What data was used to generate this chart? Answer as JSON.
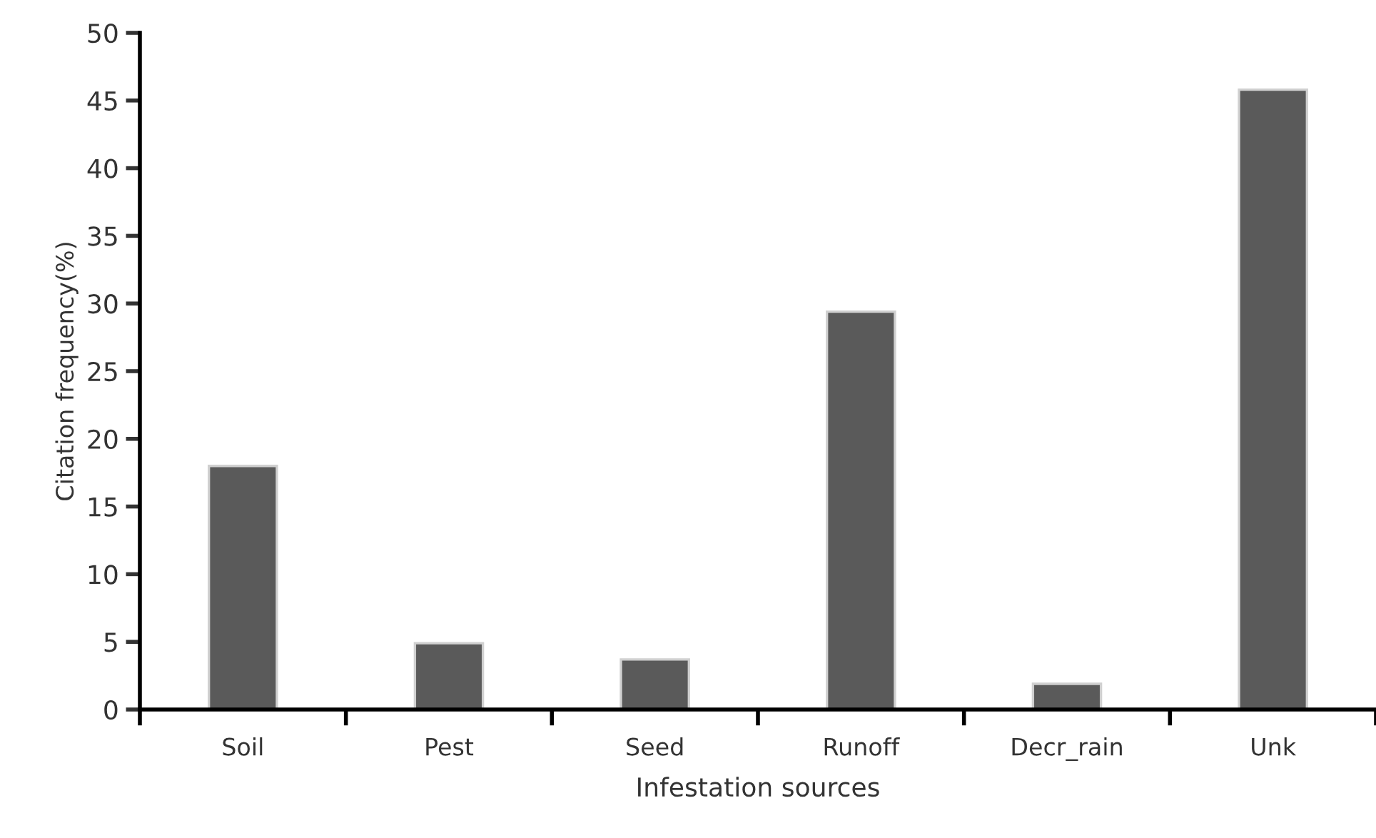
{
  "chart_data": {
    "type": "bar",
    "xlabel": "Infestation sources",
    "ylabel": "Citation frequency(%)",
    "categories": [
      "Soil",
      "Pest",
      "Seed",
      "Runoff",
      "Decr_rain",
      "Unk"
    ],
    "values": [
      18.0,
      4.9,
      3.7,
      29.4,
      1.9,
      45.8
    ],
    "color": "#5a5a5a",
    "ylim": [
      0,
      50
    ],
    "yticks": [
      0,
      5,
      10,
      15,
      20,
      25,
      30,
      35,
      40,
      45,
      50
    ],
    "grid": false,
    "legend": false
  }
}
